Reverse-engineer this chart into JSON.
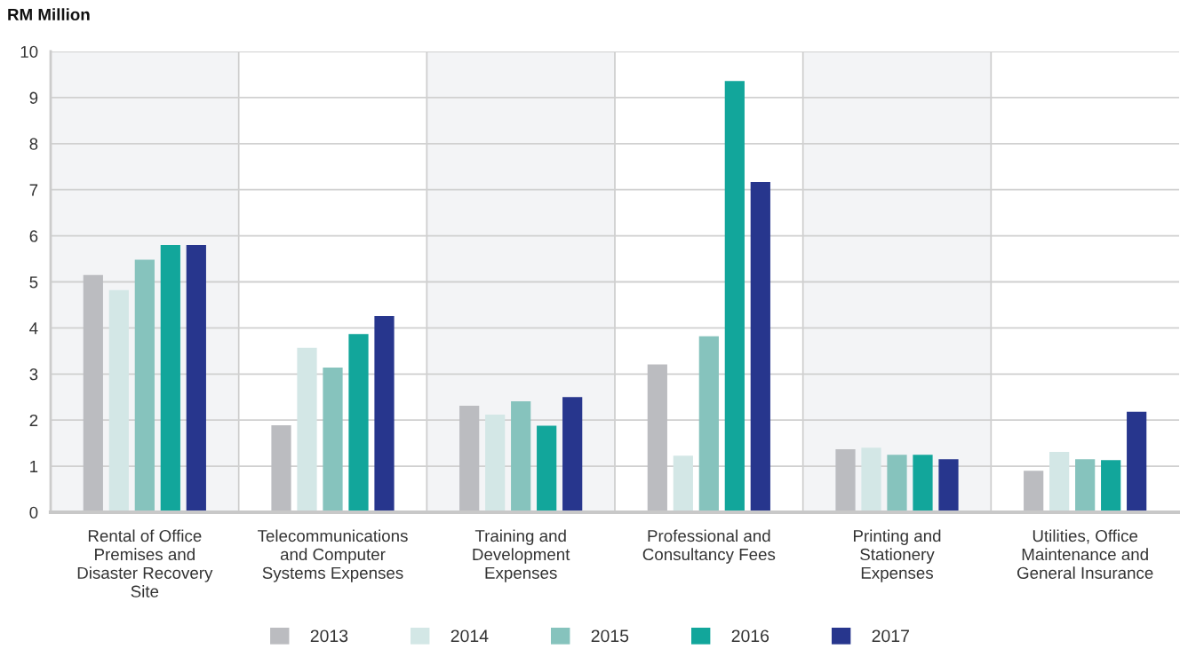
{
  "chart_data": {
    "type": "bar",
    "ylabel": "RM Million",
    "categories": [
      "Rental of Office\nPremises and\nDisaster Recovery\nSite",
      "Telecommunications\nand Computer\nSystems Expenses",
      "Training and\nDevelopment\nExpenses",
      "Professional and\nConsultancy Fees",
      "Printing and\nStationery\nExpenses",
      "Utilities, Office\nMaintenance and\nGeneral Insurance"
    ],
    "series": [
      {
        "name": "2013",
        "color": "#bbbcc0",
        "values": [
          5.15,
          1.89,
          2.31,
          3.21,
          1.37,
          0.9
        ]
      },
      {
        "name": "2014",
        "color": "#d3e7e6",
        "values": [
          4.82,
          3.57,
          2.12,
          1.23,
          1.4,
          1.31
        ]
      },
      {
        "name": "2015",
        "color": "#86c3bd",
        "values": [
          5.48,
          3.14,
          2.41,
          3.82,
          1.25,
          1.15
        ]
      },
      {
        "name": "2016",
        "color": "#12a69b",
        "values": [
          5.8,
          3.87,
          1.88,
          9.36,
          1.25,
          1.13
        ]
      },
      {
        "name": "2017",
        "color": "#27368d",
        "values": [
          5.8,
          4.26,
          2.5,
          7.17,
          1.15,
          2.18
        ]
      }
    ],
    "ylim": [
      0,
      10
    ],
    "yticks": [
      0,
      1,
      2,
      3,
      4,
      5,
      6,
      7,
      8,
      9,
      10
    ],
    "grid": "y",
    "legend": "bottom",
    "bands": [
      {
        "axis": "x",
        "from": "Rental of Office\nPremises and\nDisaster Recovery\nSite",
        "to": "Rental of Office\nPremises and\nDisaster Recovery\nSite",
        "color": "#f3f4f6"
      },
      {
        "axis": "x",
        "from": "Training and\nDevelopment\nExpenses",
        "to": "Training and\nDevelopment\nExpenses",
        "color": "#f3f4f6"
      },
      {
        "axis": "x",
        "from": "Printing and\nStationery\nExpenses",
        "to": "Printing and\nStationery\nExpenses",
        "color": "#f3f4f6"
      }
    ]
  }
}
